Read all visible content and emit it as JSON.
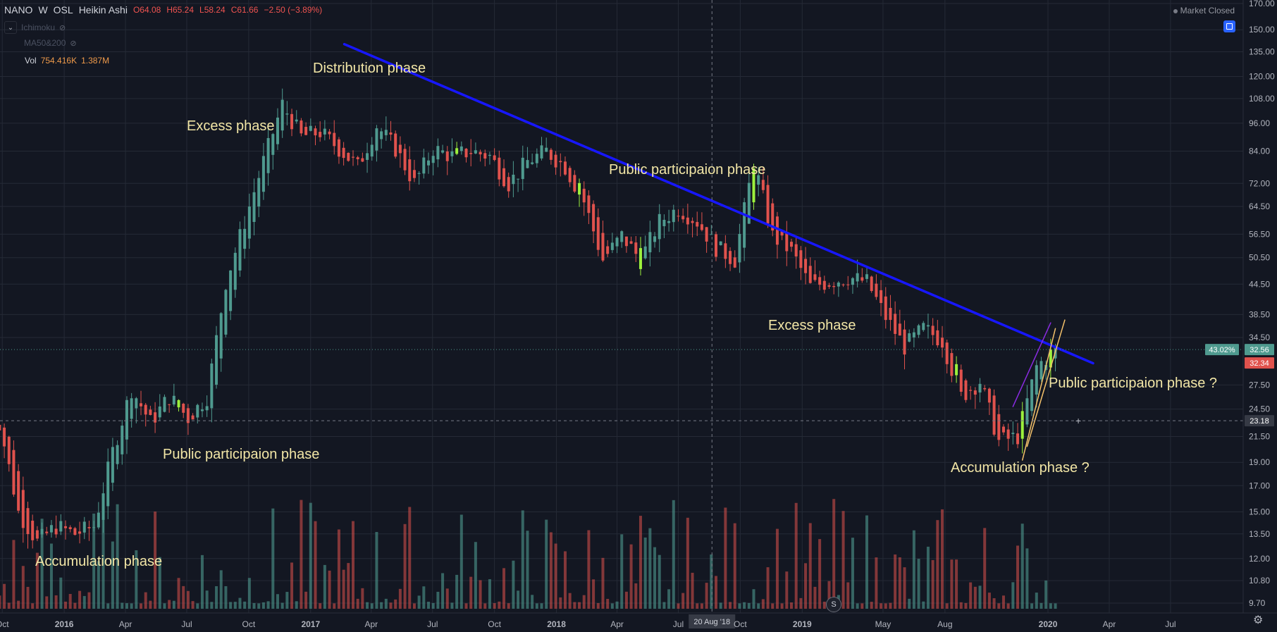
{
  "header": {
    "symbol": "NANO",
    "interval": "W",
    "exchange": "OSL",
    "chart_style": "Heikin Ashi",
    "ohlc": {
      "open": "O64.08",
      "high": "H65.24",
      "low": "L58.24",
      "close": "C61.66",
      "change": "−2.50 (−3.89%)"
    },
    "market_status": "Market Closed"
  },
  "indicators": [
    {
      "label": "Ichimoku",
      "icon": "eye-off-icon"
    },
    {
      "label": "MA50&200",
      "icon": "eye-off-icon"
    }
  ],
  "volume_legend": {
    "label": "Vol",
    "value1": "754.416K",
    "value2": "1.387M"
  },
  "price_axis": {
    "labels": [
      "170.00",
      "150.00",
      "135.00",
      "120.00",
      "108.00",
      "96.00",
      "84.00",
      "72.00",
      "64.50",
      "56.50",
      "50.50",
      "44.50",
      "38.50",
      "34.50",
      "27.50",
      "24.50",
      "21.50",
      "19.00",
      "17.00",
      "15.00",
      "13.50",
      "12.00",
      "10.80",
      "9.70"
    ],
    "badges": [
      {
        "text": "43.02%",
        "color": "#4f9a8f"
      },
      {
        "text": "32.56",
        "color": "#4f9a8f"
      },
      {
        "text": "32.34",
        "color": "#e0524d"
      },
      {
        "text": "23.18",
        "color": "#363a45"
      }
    ]
  },
  "time_axis": {
    "labels": [
      "Oct",
      "2016",
      "Apr",
      "Jul",
      "Oct",
      "2017",
      "Apr",
      "Jul",
      "Oct",
      "2018",
      "Apr",
      "Jul",
      "Oct",
      "2019",
      "May",
      "Aug",
      "2020",
      "Apr",
      "Jul"
    ],
    "crosshair_label": "20 Aug '18"
  },
  "colors": {
    "up": "#4f9a8f",
    "down": "#e0524d",
    "highlight": "#9cf03c",
    "trendline": "#1717ff",
    "background": "#131722",
    "annotation": "#f2e6a6"
  },
  "annotations": [
    "Distribution phase",
    "Excess phase",
    "Public participaion phase",
    "Public participaion phase",
    "Accumulation phase",
    "Excess phase",
    "Public participaion phase ?",
    "Accumulation phase ?"
  ],
  "chart_data": {
    "type": "candlestick",
    "title": "",
    "xlabel": "",
    "ylabel": "",
    "scale": "log",
    "grid": true,
    "x_range": [
      "2015-09",
      "2020-09"
    ],
    "y_range": [
      9,
      170
    ],
    "series": [
      {
        "values": [
          {
            "x": "2015-09-27",
            "close": 23
          },
          {
            "x": "2015-10-25",
            "close": 15
          },
          {
            "x": "2015-11-22",
            "close": 13
          },
          {
            "x": "2015-12-20",
            "close": 14
          },
          {
            "x": "2016-01-17",
            "close": 13.5
          },
          {
            "x": "2016-02-14",
            "close": 14
          },
          {
            "x": "2016-03-13",
            "close": 20
          },
          {
            "x": "2016-04-10",
            "close": 27
          },
          {
            "x": "2016-05-08",
            "close": 23
          },
          {
            "x": "2016-06-05",
            "close": 26
          },
          {
            "x": "2016-07-03",
            "close": 23.5
          },
          {
            "x": "2016-07-31",
            "close": 26
          },
          {
            "x": "2016-08-28",
            "close": 45
          },
          {
            "x": "2016-09-25",
            "close": 60
          },
          {
            "x": "2016-10-23",
            "close": 80
          },
          {
            "x": "2016-11-20",
            "close": 105
          },
          {
            "x": "2016-12-18",
            "close": 90
          },
          {
            "x": "2017-01-15",
            "close": 92
          },
          {
            "x": "2017-02-12",
            "close": 85
          },
          {
            "x": "2017-03-12",
            "close": 78
          },
          {
            "x": "2017-04-09",
            "close": 95
          },
          {
            "x": "2017-05-07",
            "close": 85
          },
          {
            "x": "2017-06-04",
            "close": 72
          },
          {
            "x": "2017-07-02",
            "close": 85
          },
          {
            "x": "2017-07-30",
            "close": 82
          },
          {
            "x": "2017-08-27",
            "close": 84
          },
          {
            "x": "2017-09-24",
            "close": 82
          },
          {
            "x": "2017-10-22",
            "close": 72
          },
          {
            "x": "2017-11-19",
            "close": 80
          },
          {
            "x": "2017-12-17",
            "close": 84
          },
          {
            "x": "2018-01-14",
            "close": 78
          },
          {
            "x": "2018-02-11",
            "close": 66
          },
          {
            "x": "2018-03-11",
            "close": 50
          },
          {
            "x": "2018-04-08",
            "close": 56
          },
          {
            "x": "2018-05-06",
            "close": 50
          },
          {
            "x": "2018-06-03",
            "close": 60
          },
          {
            "x": "2018-07-01",
            "close": 64
          },
          {
            "x": "2018-07-29",
            "close": 60
          },
          {
            "x": "2018-08-26",
            "close": 53
          },
          {
            "x": "2018-09-23",
            "close": 50
          },
          {
            "x": "2018-10-21",
            "close": 80
          },
          {
            "x": "2018-11-18",
            "close": 56
          },
          {
            "x": "2018-12-16",
            "close": 52
          },
          {
            "x": "2019-01-13",
            "close": 44
          },
          {
            "x": "2019-02-10",
            "close": 45
          },
          {
            "x": "2019-03-10",
            "close": 46
          },
          {
            "x": "2019-04-07",
            "close": 45
          },
          {
            "x": "2019-05-05",
            "close": 38
          },
          {
            "x": "2019-06-02",
            "close": 33
          },
          {
            "x": "2019-06-30",
            "close": 36
          },
          {
            "x": "2019-07-28",
            "close": 34
          },
          {
            "x": "2019-08-25",
            "close": 26
          },
          {
            "x": "2019-09-22",
            "close": 28
          },
          {
            "x": "2019-10-20",
            "close": 21
          },
          {
            "x": "2019-11-17",
            "close": 21.5
          },
          {
            "x": "2019-12-15",
            "close": 30
          },
          {
            "x": "2020-01-12",
            "close": 32.6
          }
        ]
      }
    ],
    "trendlines": [
      {
        "name": "downtrend",
        "from": {
          "x": "2017-02-20",
          "y": 140
        },
        "to": {
          "x": "2020-03-08",
          "y": 30.5
        }
      },
      {
        "name": "channel-1",
        "from": {
          "x": "2019-11-10",
          "y": 24.8
        },
        "to": {
          "x": "2020-01-05",
          "y": 37
        }
      },
      {
        "name": "channel-2",
        "from": {
          "x": "2019-11-24",
          "y": 19.2
        },
        "to": {
          "x": "2020-01-12",
          "y": 36
        }
      },
      {
        "name": "channel-3",
        "from": {
          "x": "2019-12-01",
          "y": 20.5
        },
        "to": {
          "x": "2020-01-26",
          "y": 37.5
        }
      }
    ],
    "volume_max": 100
  }
}
